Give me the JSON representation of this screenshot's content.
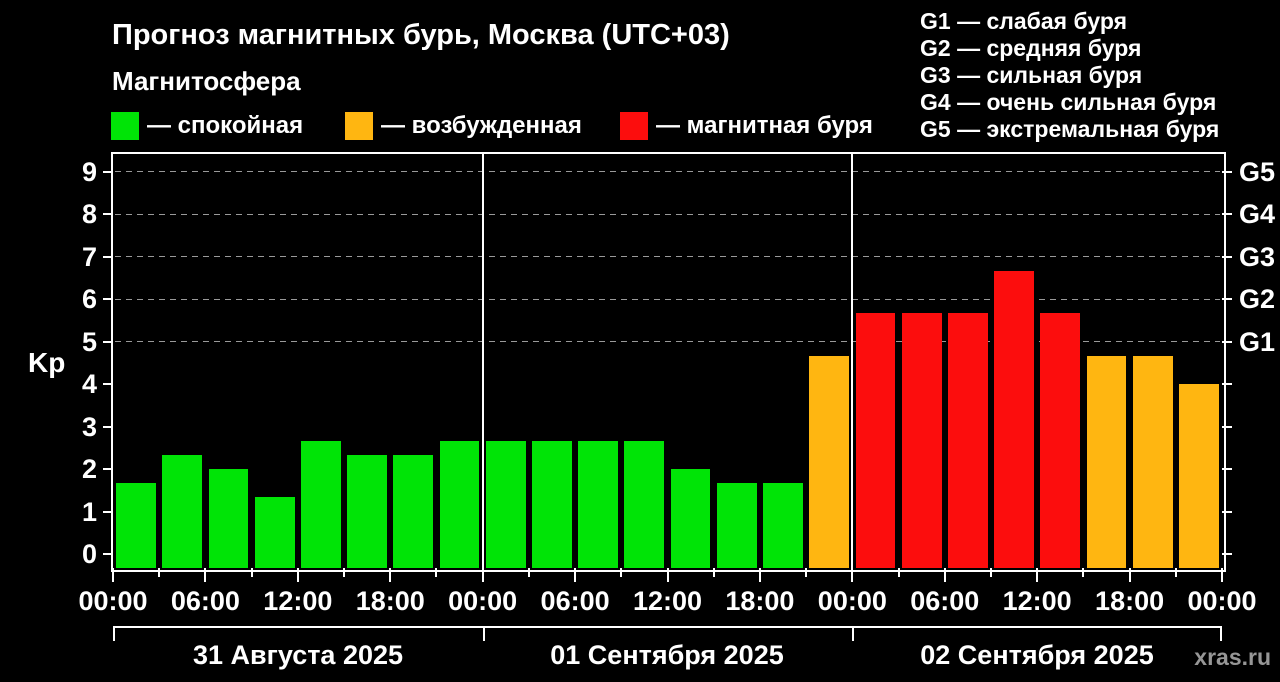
{
  "header": {
    "title": "Прогноз магнитных бурь, Москва (UTC+03)",
    "subtitle": "Магнитосфера"
  },
  "legend": {
    "items": [
      {
        "state": "quiet",
        "label": "— спокойная",
        "color": "#00e406"
      },
      {
        "state": "excited",
        "label": "— возбужденная",
        "color": "#ffb611"
      },
      {
        "state": "storm",
        "label": "— магнитная буря",
        "color": "#fc0d0d"
      }
    ]
  },
  "storm_scale": {
    "items": [
      {
        "label": "G1 — слабая буря"
      },
      {
        "label": "G2 — средняя буря"
      },
      {
        "label": "G3 — сильная буря"
      },
      {
        "label": "G4 — очень сильная буря"
      },
      {
        "label": "G5 — экстремальная буря"
      }
    ]
  },
  "chart_data": {
    "type": "bar",
    "title": "Прогноз магнитных бурь, Москва (UTC+03)",
    "xlabel": "",
    "ylabel": "Kp",
    "ylim": [
      0,
      9
    ],
    "yticks": [
      0,
      1,
      2,
      3,
      4,
      5,
      6,
      7,
      8,
      9
    ],
    "grid": {
      "dashed_levels": [
        5,
        6,
        7,
        8,
        9
      ]
    },
    "legend_position": "top-left",
    "right_axis": [
      {
        "kp": 5,
        "label": "G1"
      },
      {
        "kp": 6,
        "label": "G2"
      },
      {
        "kp": 7,
        "label": "G3"
      },
      {
        "kp": 8,
        "label": "G4"
      },
      {
        "kp": 9,
        "label": "G5"
      }
    ],
    "hours_per_bar": 3,
    "time_labels": [
      "00:00",
      "06:00",
      "12:00",
      "18:00",
      "00:00",
      "06:00",
      "12:00",
      "18:00",
      "00:00",
      "06:00",
      "12:00",
      "18:00",
      "00:00"
    ],
    "days": [
      {
        "date": "31 Августа 2025",
        "values": [
          1.67,
          2.33,
          2.0,
          1.33,
          2.67,
          2.33,
          2.33,
          2.67
        ],
        "states": [
          "quiet",
          "quiet",
          "quiet",
          "quiet",
          "quiet",
          "quiet",
          "quiet",
          "quiet"
        ]
      },
      {
        "date": "01 Сентября 2025",
        "values": [
          2.67,
          2.67,
          2.67,
          2.67,
          2.0,
          1.67,
          1.67,
          4.67
        ],
        "states": [
          "quiet",
          "quiet",
          "quiet",
          "quiet",
          "quiet",
          "quiet",
          "quiet",
          "excited"
        ]
      },
      {
        "date": "02 Сентября 2025",
        "values": [
          5.67,
          5.67,
          5.67,
          6.67,
          5.67,
          4.67,
          4.67,
          4.0
        ],
        "states": [
          "storm",
          "storm",
          "storm",
          "storm",
          "storm",
          "excited",
          "excited",
          "excited"
        ]
      }
    ]
  },
  "watermark": "xras.ru",
  "colors": {
    "background": "#000000",
    "text": "#ffffff",
    "axis": "#ffffff",
    "grid": "#9a9a9a",
    "quiet": "#00e406",
    "excited": "#ffb611",
    "storm": "#fc0d0d",
    "watermark": "#969696"
  }
}
